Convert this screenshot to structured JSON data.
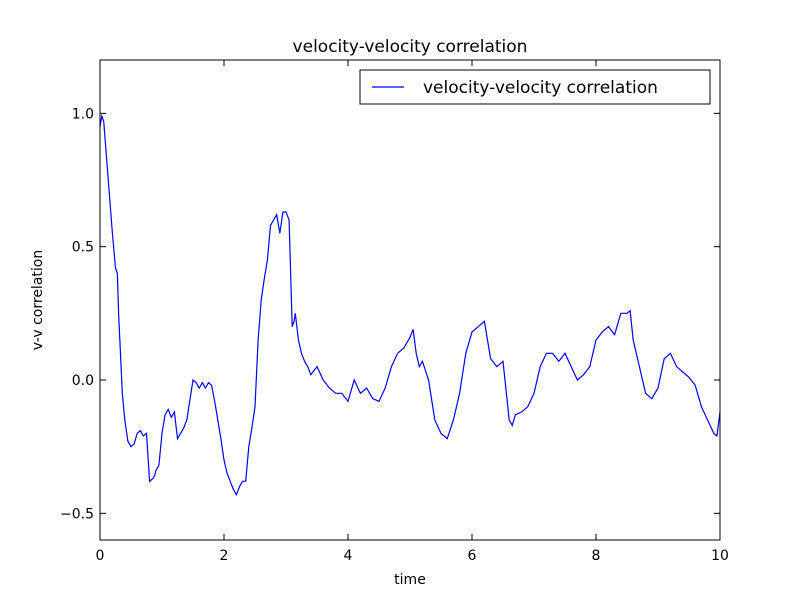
{
  "chart_data": {
    "type": "line",
    "title": "velocity-velocity correlation",
    "xlabel": "time",
    "ylabel": "v-v correlation",
    "xlim": [
      0,
      10
    ],
    "ylim": [
      -0.6,
      1.2
    ],
    "x_ticks": [
      0,
      2,
      4,
      6,
      8,
      10
    ],
    "x_tick_labels": [
      "0",
      "2",
      "4",
      "6",
      "8",
      "10"
    ],
    "y_ticks": [
      -0.5,
      0.0,
      0.5,
      1.0
    ],
    "y_tick_labels": [
      "−0.5",
      "0.0",
      "0.5",
      "1.0"
    ],
    "grid": false,
    "legend_position": "top-right",
    "series": [
      {
        "name": "velocity-velocity correlation",
        "color": "#0000ff",
        "x": [
          0,
          0.03,
          0.06,
          0.1,
          0.15,
          0.2,
          0.25,
          0.28,
          0.3,
          0.33,
          0.36,
          0.4,
          0.45,
          0.5,
          0.55,
          0.6,
          0.65,
          0.7,
          0.75,
          0.8,
          0.85,
          0.88,
          0.9,
          0.95,
          1.0,
          1.05,
          1.1,
          1.15,
          1.2,
          1.25,
          1.3,
          1.35,
          1.4,
          1.5,
          1.55,
          1.6,
          1.65,
          1.7,
          1.75,
          1.8,
          1.85,
          1.9,
          1.95,
          2.0,
          2.05,
          2.1,
          2.15,
          2.2,
          2.25,
          2.3,
          2.35,
          2.4,
          2.45,
          2.5,
          2.55,
          2.6,
          2.65,
          2.7,
          2.75,
          2.8,
          2.85,
          2.9,
          2.95,
          3.0,
          3.05,
          3.1,
          3.13,
          3.15,
          3.2,
          3.25,
          3.3,
          3.35,
          3.4,
          3.5,
          3.6,
          3.7,
          3.8,
          3.9,
          4.0,
          4.1,
          4.2,
          4.3,
          4.4,
          4.5,
          4.6,
          4.7,
          4.8,
          4.9,
          5.0,
          5.05,
          5.1,
          5.15,
          5.2,
          5.3,
          5.4,
          5.5,
          5.6,
          5.7,
          5.8,
          5.9,
          6.0,
          6.1,
          6.2,
          6.3,
          6.4,
          6.5,
          6.6,
          6.65,
          6.7,
          6.8,
          6.9,
          7.0,
          7.1,
          7.2,
          7.3,
          7.4,
          7.5,
          7.6,
          7.7,
          7.8,
          7.9,
          8.0,
          8.1,
          8.2,
          8.3,
          8.4,
          8.5,
          8.55,
          8.6,
          8.65,
          8.7,
          8.8,
          8.9,
          9.0,
          9.1,
          9.2,
          9.3,
          9.4,
          9.5,
          9.6,
          9.7,
          9.8,
          9.9,
          9.95,
          10.0
        ],
        "y": [
          0.95,
          0.99,
          0.97,
          0.85,
          0.7,
          0.55,
          0.42,
          0.4,
          0.25,
          0.1,
          -0.05,
          -0.15,
          -0.23,
          -0.25,
          -0.24,
          -0.2,
          -0.19,
          -0.21,
          -0.2,
          -0.38,
          -0.37,
          -0.36,
          -0.34,
          -0.32,
          -0.2,
          -0.13,
          -0.11,
          -0.14,
          -0.12,
          -0.22,
          -0.2,
          -0.18,
          -0.15,
          0.0,
          -0.01,
          -0.03,
          -0.01,
          -0.03,
          -0.01,
          -0.02,
          -0.08,
          -0.15,
          -0.22,
          -0.3,
          -0.35,
          -0.38,
          -0.41,
          -0.43,
          -0.4,
          -0.38,
          -0.38,
          -0.25,
          -0.18,
          -0.1,
          0.15,
          0.3,
          0.38,
          0.45,
          0.58,
          0.6,
          0.62,
          0.55,
          0.63,
          0.63,
          0.6,
          0.2,
          0.22,
          0.25,
          0.15,
          0.1,
          0.07,
          0.05,
          0.02,
          0.05,
          0.0,
          -0.03,
          -0.05,
          -0.05,
          -0.08,
          0.0,
          -0.05,
          -0.03,
          -0.07,
          -0.08,
          -0.03,
          0.05,
          0.1,
          0.12,
          0.16,
          0.19,
          0.1,
          0.05,
          0.07,
          0.0,
          -0.15,
          -0.2,
          -0.22,
          -0.15,
          -0.05,
          0.1,
          0.18,
          0.2,
          0.22,
          0.08,
          0.05,
          0.07,
          -0.15,
          -0.17,
          -0.13,
          -0.12,
          -0.1,
          -0.05,
          0.05,
          0.1,
          0.1,
          0.07,
          0.1,
          0.05,
          0.0,
          0.02,
          0.05,
          0.15,
          0.18,
          0.2,
          0.17,
          0.25,
          0.25,
          0.26,
          0.15,
          0.1,
          0.05,
          -0.05,
          -0.07,
          -0.03,
          0.08,
          0.1,
          0.05,
          0.03,
          0.01,
          -0.02,
          -0.1,
          -0.15,
          -0.2,
          -0.21,
          -0.12
        ],
        "approximate": true
      }
    ]
  }
}
